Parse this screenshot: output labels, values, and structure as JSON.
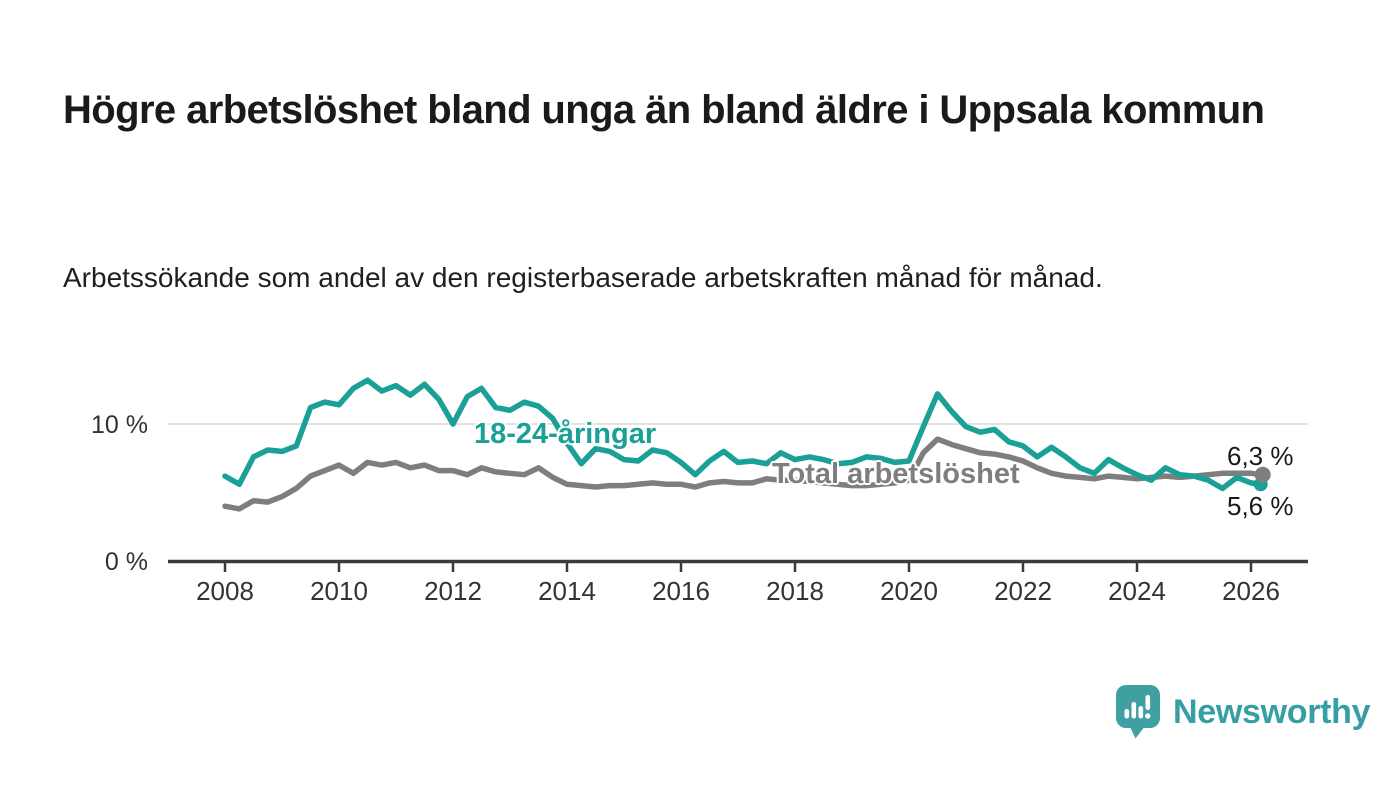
{
  "title": "Högre arbetslöshet bland unga än bland äldre i Uppsala kommun",
  "subtitle": "Arbetssökande som andel av den registerbaserade arbetskraften månad för månad.",
  "branding": {
    "name": "Newsworthy",
    "text_color": "#369fa4",
    "icon_color": "#3fa0a1"
  },
  "chart_data": {
    "type": "line",
    "title": "Högre arbetslöshet bland unga än bland äldre i Uppsala kommun",
    "xlabel": "",
    "ylabel": "",
    "unit": "%",
    "xlim": [
      2007,
      2027
    ],
    "ylim": [
      0,
      14
    ],
    "grid_lines_at": [
      10
    ],
    "axis_color": "#3b3b3b",
    "grid_color": "#d9d9d9",
    "x": [
      2008,
      2008.25,
      2008.5,
      2008.75,
      2009,
      2009.25,
      2009.5,
      2009.75,
      2010,
      2010.25,
      2010.5,
      2010.75,
      2011,
      2011.25,
      2011.5,
      2011.75,
      2012,
      2012.25,
      2012.5,
      2012.75,
      2013,
      2013.25,
      2013.5,
      2013.75,
      2014,
      2014.25,
      2014.5,
      2014.75,
      2015,
      2015.25,
      2015.5,
      2015.75,
      2016,
      2016.25,
      2016.5,
      2016.75,
      2017,
      2017.25,
      2017.5,
      2017.75,
      2018,
      2018.25,
      2018.5,
      2018.75,
      2019,
      2019.25,
      2019.5,
      2019.75,
      2020,
      2020.25,
      2020.5,
      2020.75,
      2021,
      2021.25,
      2021.5,
      2021.75,
      2022,
      2022.25,
      2022.5,
      2022.75,
      2023,
      2023.25,
      2023.5,
      2023.75,
      2024,
      2024.25,
      2024.5,
      2024.75,
      2025,
      2025.25,
      2025.5,
      2025.75,
      2026,
      2026.17
    ],
    "series": [
      {
        "name": "18-24-åringar",
        "color": "#1aa096",
        "end_label": "5,6 %",
        "end_value": 5.6,
        "values": [
          6.2,
          5.6,
          7.6,
          8.1,
          8,
          8.4,
          11.2,
          11.6,
          11.4,
          12.6,
          13.2,
          12.4,
          12.8,
          12.1,
          12.9,
          11.8,
          10,
          12,
          12.6,
          11.2,
          11,
          11.6,
          11.3,
          10.4,
          8.6,
          7.1,
          8.2,
          8,
          7.4,
          7.3,
          8.1,
          7.9,
          7.2,
          6.3,
          7.3,
          8,
          7.2,
          7.3,
          7.1,
          7.9,
          7.4,
          7.6,
          7.4,
          7.1,
          7.2,
          7.6,
          7.5,
          7.2,
          7.3,
          9.8,
          12.2,
          10.9,
          9.8,
          9.4,
          9.6,
          8.7,
          8.4,
          7.6,
          8.3,
          7.6,
          6.8,
          6.4,
          7.4,
          6.8,
          6.3,
          5.9,
          6.8,
          6.3,
          6.2,
          5.9,
          5.3,
          6.1,
          5.7,
          5.6
        ]
      },
      {
        "name": "Total arbetslöshet",
        "color": "#7e7e7e",
        "end_label": "6,3 %",
        "end_value": 6.3,
        "values": [
          4,
          3.8,
          4.4,
          4.3,
          4.7,
          5.3,
          6.2,
          6.6,
          7,
          6.4,
          7.2,
          7,
          7.2,
          6.8,
          7,
          6.6,
          6.6,
          6.3,
          6.8,
          6.5,
          6.4,
          6.3,
          6.8,
          6.1,
          5.6,
          5.5,
          5.4,
          5.5,
          5.5,
          5.6,
          5.7,
          5.6,
          5.6,
          5.4,
          5.7,
          5.8,
          5.7,
          5.7,
          6,
          5.9,
          5.9,
          5.8,
          5.7,
          5.6,
          5.5,
          5.5,
          5.6,
          5.7,
          5.9,
          7.9,
          8.9,
          8.5,
          8.2,
          7.9,
          7.8,
          7.6,
          7.3,
          6.8,
          6.4,
          6.2,
          6.1,
          6,
          6.2,
          6.1,
          6,
          6.1,
          6.2,
          6.1,
          6.2,
          6.3,
          6.4,
          6.4,
          6.4,
          6.3
        ]
      }
    ],
    "yticks": [
      {
        "value": 0,
        "label": "0 %"
      },
      {
        "value": 10,
        "label": "10 %"
      }
    ],
    "xticks": [
      {
        "value": 2008,
        "label": "2008"
      },
      {
        "value": 2010,
        "label": "2010"
      },
      {
        "value": 2012,
        "label": "2012"
      },
      {
        "value": 2014,
        "label": "2014"
      },
      {
        "value": 2016,
        "label": "2016"
      },
      {
        "value": 2018,
        "label": "2018"
      },
      {
        "value": 2020,
        "label": "2020"
      },
      {
        "value": 2022,
        "label": "2022"
      },
      {
        "value": 2024,
        "label": "2024"
      },
      {
        "value": 2026,
        "label": "2026"
      }
    ],
    "legend": "inline-labels"
  }
}
